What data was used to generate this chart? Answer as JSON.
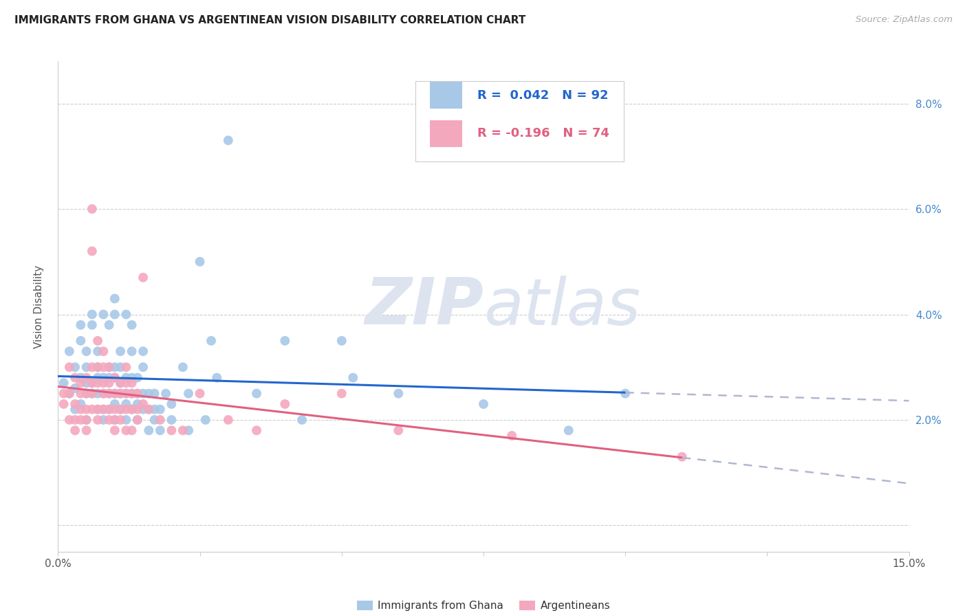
{
  "title": "IMMIGRANTS FROM GHANA VS ARGENTINEAN VISION DISABILITY CORRELATION CHART",
  "source": "Source: ZipAtlas.com",
  "ylabel": "Vision Disability",
  "xlim": [
    0.0,
    0.15
  ],
  "ylim": [
    -0.005,
    0.088
  ],
  "ghana_color": "#a8c8e8",
  "argentina_color": "#f4a8be",
  "ghana_line_color": "#2266cc",
  "argentina_line_color": "#e06080",
  "trend_ext_color": "#b0b8d0",
  "legend_R_ghana": "0.042",
  "legend_N_ghana": "92",
  "legend_R_arg": "-0.196",
  "legend_N_arg": "74",
  "watermark_zip": "ZIP",
  "watermark_atlas": "atlas",
  "ghana_scatter": [
    [
      0.001,
      0.027
    ],
    [
      0.002,
      0.025
    ],
    [
      0.002,
      0.033
    ],
    [
      0.003,
      0.026
    ],
    [
      0.003,
      0.022
    ],
    [
      0.003,
      0.03
    ],
    [
      0.004,
      0.028
    ],
    [
      0.004,
      0.023
    ],
    [
      0.004,
      0.035
    ],
    [
      0.004,
      0.038
    ],
    [
      0.005,
      0.02
    ],
    [
      0.005,
      0.025
    ],
    [
      0.005,
      0.027
    ],
    [
      0.005,
      0.03
    ],
    [
      0.005,
      0.033
    ],
    [
      0.006,
      0.025
    ],
    [
      0.006,
      0.027
    ],
    [
      0.006,
      0.038
    ],
    [
      0.006,
      0.04
    ],
    [
      0.007,
      0.022
    ],
    [
      0.007,
      0.025
    ],
    [
      0.007,
      0.028
    ],
    [
      0.007,
      0.03
    ],
    [
      0.007,
      0.033
    ],
    [
      0.008,
      0.02
    ],
    [
      0.008,
      0.022
    ],
    [
      0.008,
      0.025
    ],
    [
      0.008,
      0.028
    ],
    [
      0.008,
      0.04
    ],
    [
      0.009,
      0.022
    ],
    [
      0.009,
      0.025
    ],
    [
      0.009,
      0.028
    ],
    [
      0.009,
      0.03
    ],
    [
      0.009,
      0.038
    ],
    [
      0.01,
      0.02
    ],
    [
      0.01,
      0.023
    ],
    [
      0.01,
      0.025
    ],
    [
      0.01,
      0.028
    ],
    [
      0.01,
      0.03
    ],
    [
      0.01,
      0.04
    ],
    [
      0.01,
      0.043
    ],
    [
      0.011,
      0.022
    ],
    [
      0.011,
      0.025
    ],
    [
      0.011,
      0.027
    ],
    [
      0.011,
      0.03
    ],
    [
      0.011,
      0.033
    ],
    [
      0.012,
      0.02
    ],
    [
      0.012,
      0.023
    ],
    [
      0.012,
      0.025
    ],
    [
      0.012,
      0.028
    ],
    [
      0.012,
      0.04
    ],
    [
      0.013,
      0.022
    ],
    [
      0.013,
      0.025
    ],
    [
      0.013,
      0.028
    ],
    [
      0.013,
      0.033
    ],
    [
      0.013,
      0.038
    ],
    [
      0.014,
      0.02
    ],
    [
      0.014,
      0.023
    ],
    [
      0.014,
      0.025
    ],
    [
      0.014,
      0.028
    ],
    [
      0.015,
      0.022
    ],
    [
      0.015,
      0.025
    ],
    [
      0.015,
      0.03
    ],
    [
      0.015,
      0.033
    ],
    [
      0.016,
      0.018
    ],
    [
      0.016,
      0.022
    ],
    [
      0.016,
      0.025
    ],
    [
      0.017,
      0.02
    ],
    [
      0.017,
      0.022
    ],
    [
      0.017,
      0.025
    ],
    [
      0.018,
      0.018
    ],
    [
      0.018,
      0.022
    ],
    [
      0.019,
      0.025
    ],
    [
      0.02,
      0.02
    ],
    [
      0.02,
      0.023
    ],
    [
      0.022,
      0.03
    ],
    [
      0.023,
      0.018
    ],
    [
      0.023,
      0.025
    ],
    [
      0.025,
      0.05
    ],
    [
      0.026,
      0.02
    ],
    [
      0.027,
      0.035
    ],
    [
      0.028,
      0.028
    ],
    [
      0.03,
      0.073
    ],
    [
      0.035,
      0.025
    ],
    [
      0.04,
      0.035
    ],
    [
      0.043,
      0.02
    ],
    [
      0.05,
      0.035
    ],
    [
      0.052,
      0.028
    ],
    [
      0.06,
      0.025
    ],
    [
      0.075,
      0.023
    ],
    [
      0.09,
      0.018
    ],
    [
      0.1,
      0.025
    ]
  ],
  "argentina_scatter": [
    [
      0.001,
      0.025
    ],
    [
      0.001,
      0.023
    ],
    [
      0.002,
      0.03
    ],
    [
      0.002,
      0.025
    ],
    [
      0.002,
      0.02
    ],
    [
      0.003,
      0.028
    ],
    [
      0.003,
      0.023
    ],
    [
      0.003,
      0.02
    ],
    [
      0.003,
      0.018
    ],
    [
      0.004,
      0.027
    ],
    [
      0.004,
      0.025
    ],
    [
      0.004,
      0.022
    ],
    [
      0.004,
      0.02
    ],
    [
      0.005,
      0.028
    ],
    [
      0.005,
      0.025
    ],
    [
      0.005,
      0.022
    ],
    [
      0.005,
      0.02
    ],
    [
      0.005,
      0.018
    ],
    [
      0.006,
      0.06
    ],
    [
      0.006,
      0.052
    ],
    [
      0.006,
      0.03
    ],
    [
      0.006,
      0.027
    ],
    [
      0.006,
      0.025
    ],
    [
      0.006,
      0.022
    ],
    [
      0.007,
      0.035
    ],
    [
      0.007,
      0.03
    ],
    [
      0.007,
      0.027
    ],
    [
      0.007,
      0.022
    ],
    [
      0.007,
      0.02
    ],
    [
      0.008,
      0.033
    ],
    [
      0.008,
      0.03
    ],
    [
      0.008,
      0.027
    ],
    [
      0.008,
      0.025
    ],
    [
      0.008,
      0.022
    ],
    [
      0.009,
      0.03
    ],
    [
      0.009,
      0.027
    ],
    [
      0.009,
      0.025
    ],
    [
      0.009,
      0.022
    ],
    [
      0.009,
      0.02
    ],
    [
      0.01,
      0.028
    ],
    [
      0.01,
      0.025
    ],
    [
      0.01,
      0.022
    ],
    [
      0.01,
      0.02
    ],
    [
      0.01,
      0.018
    ],
    [
      0.011,
      0.027
    ],
    [
      0.011,
      0.025
    ],
    [
      0.011,
      0.022
    ],
    [
      0.011,
      0.02
    ],
    [
      0.012,
      0.03
    ],
    [
      0.012,
      0.027
    ],
    [
      0.012,
      0.025
    ],
    [
      0.012,
      0.022
    ],
    [
      0.012,
      0.018
    ],
    [
      0.013,
      0.027
    ],
    [
      0.013,
      0.025
    ],
    [
      0.013,
      0.022
    ],
    [
      0.013,
      0.018
    ],
    [
      0.014,
      0.025
    ],
    [
      0.014,
      0.022
    ],
    [
      0.014,
      0.02
    ],
    [
      0.015,
      0.047
    ],
    [
      0.015,
      0.023
    ],
    [
      0.016,
      0.022
    ],
    [
      0.018,
      0.02
    ],
    [
      0.02,
      0.018
    ],
    [
      0.022,
      0.018
    ],
    [
      0.025,
      0.025
    ],
    [
      0.03,
      0.02
    ],
    [
      0.035,
      0.018
    ],
    [
      0.04,
      0.023
    ],
    [
      0.05,
      0.025
    ],
    [
      0.06,
      0.018
    ],
    [
      0.08,
      0.017
    ],
    [
      0.11,
      0.013
    ]
  ]
}
